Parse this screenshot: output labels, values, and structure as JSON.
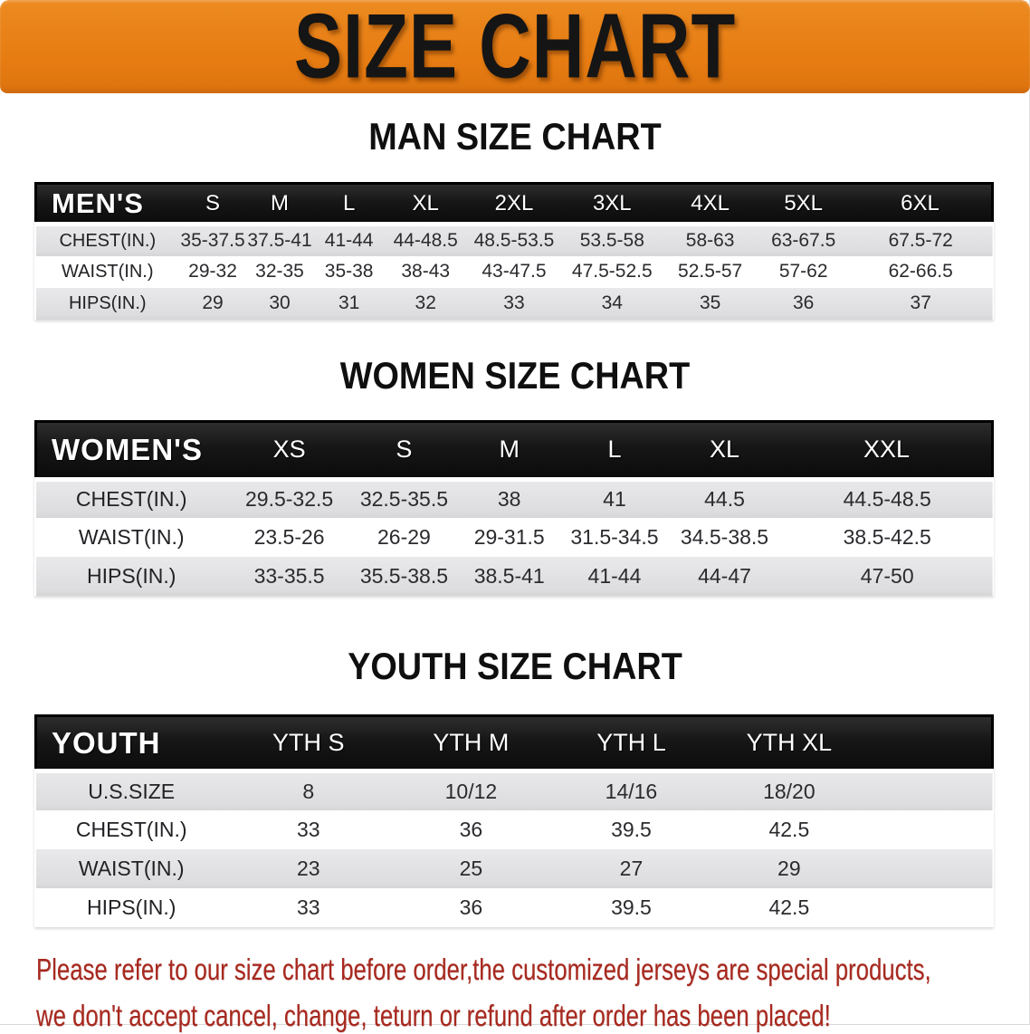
{
  "banner": {
    "title": "SIZE CHART",
    "bg_color": "#e67c12",
    "text_color": "#151515"
  },
  "sections": [
    {
      "id": "men",
      "heading": "MAN SIZE CHART",
      "table": {
        "label": "MEN'S",
        "columns": [
          "S",
          "M",
          "L",
          "XL",
          "2XL",
          "3XL",
          "4XL",
          "5XL",
          "6XL"
        ],
        "rows": [
          {
            "label": "CHEST(IN.)",
            "values": [
              "35-37.5",
              "37.5-41",
              "41-44",
              "44-48.5",
              "48.5-53.5",
              "53.5-58",
              "58-63",
              "63-67.5",
              "67.5-72"
            ]
          },
          {
            "label": "WAIST(IN.)",
            "values": [
              "29-32",
              "32-35",
              "35-38",
              "38-43",
              "43-47.5",
              "47.5-52.5",
              "52.5-57",
              "57-62",
              "62-66.5"
            ]
          },
          {
            "label": "HIPS(IN.)",
            "values": [
              "29",
              "30",
              "31",
              "32",
              "33",
              "34",
              "35",
              "36",
              "37"
            ]
          }
        ]
      }
    },
    {
      "id": "women",
      "heading": "WOMEN SIZE CHART",
      "table": {
        "label": "WOMEN'S",
        "columns": [
          "XS",
          "S",
          "M",
          "L",
          "XL",
          "XXL"
        ],
        "rows": [
          {
            "label": "CHEST(IN.)",
            "values": [
              "29.5-32.5",
              "32.5-35.5",
              "38",
              "41",
              "44.5",
              "44.5-48.5"
            ]
          },
          {
            "label": "WAIST(IN.)",
            "values": [
              "23.5-26",
              "26-29",
              "29-31.5",
              "31.5-34.5",
              "34.5-38.5",
              "38.5-42.5"
            ]
          },
          {
            "label": "HIPS(IN.)",
            "values": [
              "33-35.5",
              "35.5-38.5",
              "38.5-41",
              "41-44",
              "44-47",
              "47-50"
            ]
          }
        ]
      }
    },
    {
      "id": "youth",
      "heading": "YOUTH SIZE CHART",
      "table": {
        "label": "YOUTH",
        "columns": [
          "YTH S",
          "YTH M",
          "YTH L",
          "YTH XL"
        ],
        "rows": [
          {
            "label": "U.S.SIZE",
            "values": [
              "8",
              "10/12",
              "14/16",
              "18/20"
            ]
          },
          {
            "label": "CHEST(IN.)",
            "values": [
              "33",
              "36",
              "39.5",
              "42.5"
            ]
          },
          {
            "label": "WAIST(IN.)",
            "values": [
              "23",
              "25",
              "27",
              "29"
            ]
          },
          {
            "label": "HIPS(IN.)",
            "values": [
              "33",
              "36",
              "39.5",
              "42.5"
            ]
          }
        ]
      }
    }
  ],
  "disclaimer": {
    "line1": "Please refer to our size chart before order,the customized jerseys are special products,",
    "line2": "we don't accept cancel, change, teturn or refund after order has been placed!",
    "color": "#a8291f"
  },
  "colors": {
    "banner_orange": "#e67c12",
    "header_bar_black": "#161616",
    "stripe_gray": "#dedee0",
    "disclaimer_red": "#a8291f"
  }
}
